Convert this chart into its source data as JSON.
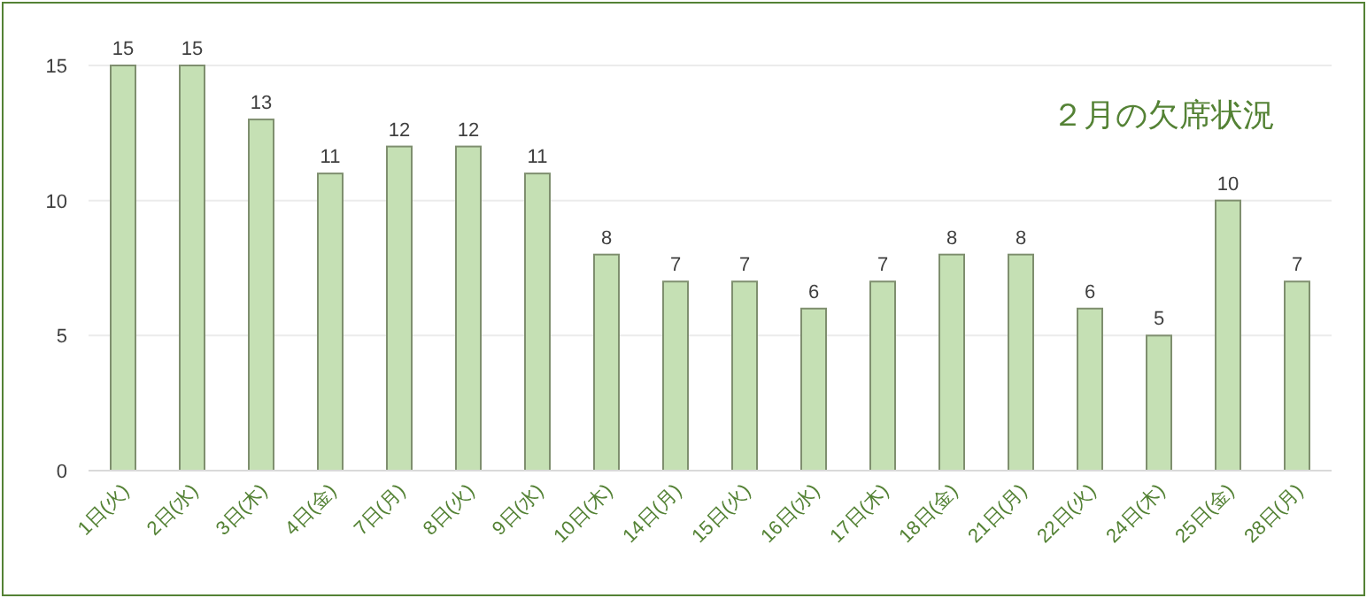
{
  "chart_data": {
    "type": "bar",
    "title": "２月の欠席状況",
    "categories": [
      "1日(火)",
      "2日(水)",
      "3日(木)",
      "4日(金)",
      "7日(月)",
      "8日(火)",
      "9日(水)",
      "10日(木)",
      "14日(月)",
      "15日(火)",
      "16日(水)",
      "17日(木)",
      "18日(金)",
      "21日(月)",
      "22日(火)",
      "24日(木)",
      "25日(金)",
      "28日(月)"
    ],
    "values": [
      15,
      15,
      13,
      11,
      12,
      12,
      11,
      8,
      7,
      7,
      6,
      7,
      8,
      8,
      6,
      5,
      10,
      7
    ],
    "color": "#c5e0b4",
    "ylim": [
      0,
      15
    ],
    "yticks": [
      0,
      5,
      10,
      15
    ],
    "grid": "y",
    "data_labels": true
  }
}
